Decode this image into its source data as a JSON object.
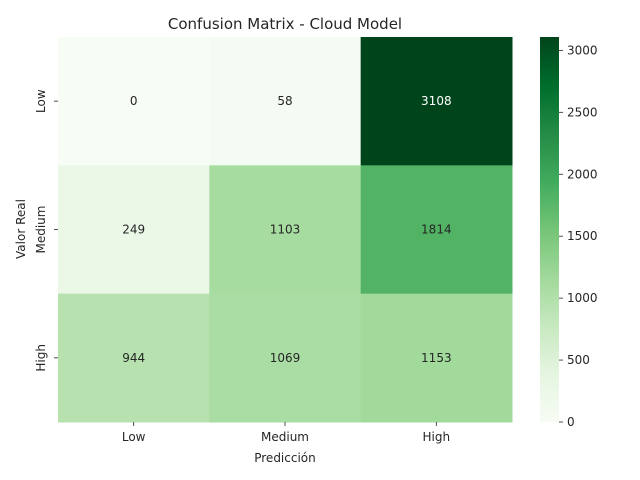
{
  "chart_data": {
    "type": "heatmap",
    "title": "Confusion Matrix - Cloud Model",
    "xlabel": "Predicción",
    "ylabel": "Valor Real",
    "x_categories": [
      "Low",
      "Medium",
      "High"
    ],
    "y_categories": [
      "Low",
      "Medium",
      "High"
    ],
    "values": [
      [
        0,
        58,
        3108
      ],
      [
        249,
        1103,
        1814
      ],
      [
        944,
        1069,
        1153
      ]
    ],
    "colorbar": {
      "min": 0,
      "max": 3108,
      "ticks": [
        0,
        500,
        1000,
        1500,
        2000,
        2500,
        3000
      ]
    },
    "colormap": "Greens",
    "colors": {
      "low": "#f7fcf5",
      "high": "#00441b"
    }
  }
}
